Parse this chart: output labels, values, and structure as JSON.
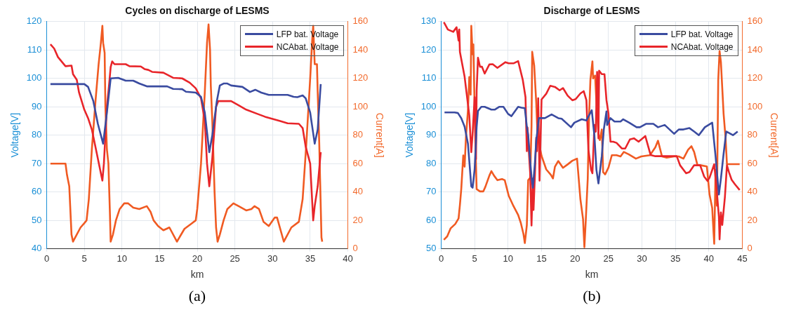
{
  "chart_data": [
    {
      "type": "line",
      "title": "Cycles on discharge of LESMS",
      "xlabel": "km",
      "ylabel": "Voltage[V]",
      "y2label": "Current[A]",
      "annotations": [
        "(a)"
      ],
      "xlim": [
        0,
        40
      ],
      "xticks": [
        0,
        5,
        10,
        15,
        20,
        25,
        30,
        35,
        40
      ],
      "ylim": [
        40,
        120
      ],
      "yticks": [
        40,
        50,
        60,
        70,
        80,
        90,
        100,
        110,
        120
      ],
      "y2lim": [
        0,
        160
      ],
      "y2ticks": [
        0,
        20,
        40,
        60,
        80,
        100,
        120,
        140,
        160
      ],
      "grid": true,
      "legend": "top right",
      "marker": "none",
      "line_style": "solid",
      "series": [
        {
          "name": "LFP bat. Voltage",
          "color": "#3a4ba0",
          "x": [
            0.5,
            5,
            5.5,
            6.2,
            6.8,
            7.5,
            8,
            8.5,
            9.5,
            10.5,
            11.5,
            12.3,
            13.3,
            15,
            16,
            16.8,
            18,
            18.5,
            19.8,
            20.5,
            21,
            21.6,
            22,
            22.6,
            23,
            23.5,
            24,
            24.5,
            26,
            27,
            27.7,
            28.5,
            29.5,
            32,
            32.8,
            33.3,
            34,
            34.4,
            35,
            35.6,
            36,
            36.4
          ],
          "values": [
            98,
            98,
            97,
            92,
            84,
            77,
            88,
            100,
            100.2,
            99.2,
            99.2,
            98.2,
            97.2,
            97.2,
            97.2,
            96.3,
            96.2,
            95.3,
            95,
            93.5,
            88,
            74,
            80,
            92,
            97.5,
            98.2,
            98.2,
            97.5,
            97,
            95.2,
            96,
            95,
            94.2,
            94.2,
            93.5,
            93.4,
            94,
            93,
            88,
            77,
            82,
            98
          ]
        },
        {
          "name": "NCAbat. Voltage",
          "color": "#e8252a",
          "x": [
            0.5,
            1,
            1.5,
            2.5,
            3.3,
            3.5,
            4,
            4.3,
            5,
            5.5,
            6,
            7.4,
            7.6,
            8,
            8.3,
            8.5,
            8.7,
            9,
            10.5,
            11,
            12.5,
            13,
            13.5,
            14,
            15.5,
            16.8,
            18,
            19,
            19.8,
            20.5,
            21,
            21.3,
            21.6,
            22,
            22.5,
            22.8,
            24.5,
            25.5,
            26.5,
            28,
            29,
            31,
            32,
            33.5,
            34,
            34.4,
            35,
            35.4,
            35.6,
            36,
            36.4
          ],
          "values": [
            112,
            110.5,
            107.5,
            104.3,
            104.5,
            101.5,
            99.5,
            95,
            89,
            86,
            82,
            64,
            70,
            90,
            98,
            104,
            106,
            105,
            105,
            104.3,
            104.2,
            103.3,
            103,
            102.3,
            102,
            100.2,
            100,
            98.5,
            96.5,
            93,
            85,
            70,
            62,
            72,
            90,
            92,
            92,
            90.5,
            89,
            87.5,
            86.5,
            85,
            84.2,
            84,
            82.5,
            76,
            70,
            50,
            55,
            62,
            74
          ]
        },
        {
          "axis": "y2",
          "color": "#f05a22",
          "x": [
            0.5,
            2.5,
            2.7,
            3,
            3.3,
            3.5,
            4.5,
            5,
            5.3,
            5.6,
            6,
            6.5,
            6.9,
            7.2,
            7.4,
            7.5,
            7.7,
            7.8,
            8,
            8.2,
            8.4,
            8.5,
            8.8,
            9.2,
            9.7,
            10.3,
            10.8,
            11.5,
            12.3,
            13.3,
            13.8,
            14.2,
            14.8,
            15.5,
            16.3,
            17.3,
            18.3,
            19.3,
            19.8,
            20,
            20.5,
            21,
            21.3,
            21.5,
            21.7,
            21.8,
            22,
            22.3,
            22.5,
            22.7,
            23,
            23.5,
            24,
            24.8,
            25.5,
            26.5,
            27.2,
            27.6,
            28.2,
            28.8,
            29.5,
            30.3,
            30.6,
            31.5,
            32.5,
            33.5,
            34,
            34.5,
            35,
            35.3,
            35.4,
            35.6,
            35.9,
            36,
            36.2,
            36.4,
            36.5,
            36.6
          ],
          "values": [
            60,
            60,
            52,
            44,
            10,
            5,
            15,
            18,
            20,
            35,
            70,
            105,
            130,
            145,
            157,
            145,
            138,
            100,
            70,
            60,
            25,
            5,
            10,
            20,
            28,
            32,
            32,
            29,
            28,
            30,
            26,
            20,
            16,
            13,
            15,
            5,
            14,
            18,
            20,
            28,
            60,
            110,
            145,
            158,
            140,
            115,
            90,
            40,
            15,
            5,
            10,
            20,
            28,
            32,
            30,
            27,
            28,
            30,
            28,
            19,
            16,
            22,
            22,
            5,
            15,
            19,
            35,
            75,
            120,
            150,
            157,
            130,
            130,
            110,
            75,
            30,
            8,
            5
          ]
        }
      ]
    },
    {
      "type": "line",
      "title": "Discharge of LESMS",
      "xlabel": "km",
      "ylabel": "Voltage[V]",
      "y2label": "Current[A]",
      "annotations": [
        "(b)"
      ],
      "xlim": [
        0,
        45
      ],
      "xticks": [
        0,
        5,
        10,
        15,
        20,
        25,
        30,
        35,
        40,
        45
      ],
      "ylim": [
        50,
        130
      ],
      "yticks": [
        50,
        60,
        70,
        80,
        90,
        100,
        110,
        120,
        130
      ],
      "y2lim": [
        0,
        160
      ],
      "y2ticks": [
        0,
        20,
        40,
        60,
        80,
        100,
        120,
        140,
        160
      ],
      "grid": true,
      "legend": "top right",
      "marker": "none",
      "line_style": "solid",
      "series": [
        {
          "name": "LFP bat. Voltage",
          "color": "#3a4ba0",
          "x": [
            0.5,
            2,
            2.5,
            3,
            3.5,
            4,
            4.5,
            4.7,
            5,
            5.3,
            5.5,
            6,
            6.5,
            7.5,
            8,
            8.7,
            9.3,
            10,
            10.5,
            11.5,
            12,
            12.5,
            12.8,
            13,
            13.5,
            13.7,
            14,
            14.2,
            14.6,
            15.5,
            16.5,
            17.5,
            18,
            19.4,
            19.9,
            21,
            21.7,
            22.5,
            22.9,
            23.2,
            23.5,
            24,
            24.3,
            24.7,
            24.8,
            25.3,
            25.9,
            26.8,
            27.2,
            28.1,
            29.2,
            29.7,
            30.6,
            31.7,
            32.4,
            33.4,
            34.8,
            35.5,
            36.2,
            37.1,
            37.8,
            38.5,
            39.4,
            40.5,
            41,
            41.5,
            41.8,
            42.2,
            42.6,
            43.6,
            44.3
          ],
          "values": [
            98,
            98,
            97.8,
            96,
            93,
            87,
            72,
            71.5,
            78,
            93,
            98.5,
            100,
            100,
            99,
            99,
            100,
            100,
            97.5,
            96.7,
            100,
            99.7,
            99.5,
            93,
            90,
            75,
            71.5,
            80,
            88,
            96,
            96,
            97.3,
            96,
            95.8,
            92.8,
            94.4,
            95.6,
            95.2,
            98.8,
            89.7,
            77.8,
            73,
            82.6,
            92,
            98.4,
            93.6,
            96,
            94.8,
            94.8,
            95.6,
            94.4,
            92.8,
            92.8,
            94,
            94,
            92.8,
            93.6,
            90.5,
            92,
            92,
            92.5,
            91.3,
            90,
            92.8,
            94.4,
            82.6,
            69.1,
            74.7,
            83.4,
            91.3,
            90,
            91.3
          ]
        },
        {
          "name": "NCAbat. Voltage",
          "color": "#e8252a",
          "x": [
            0.4,
            1,
            1.8,
            2.3,
            2.6,
            2.7,
            2.8,
            3.5,
            4.2,
            4.5,
            4.7,
            5,
            5.2,
            5.3,
            5.5,
            5.8,
            6.1,
            6.5,
            7.2,
            7.7,
            8.4,
            9.6,
            10.1,
            10.8,
            11.5,
            12.2,
            12.6,
            12.8,
            12.9,
            13.1,
            13.3,
            13.5,
            13.7,
            13.8,
            14,
            14.2,
            14.3,
            14.5,
            14.7,
            15,
            15.7,
            16.3,
            17,
            17.7,
            18.2,
            18.9,
            19.6,
            20.1,
            20.8,
            21.3,
            21.7,
            22,
            22.4,
            22.6,
            22.9,
            23.1,
            23.3,
            23.5,
            23.6,
            24,
            24.4,
            24.7,
            25,
            25.3,
            25.7,
            26.2,
            27,
            27.5,
            28.2,
            28.8,
            29.5,
            30.5,
            31.3,
            32,
            33.8,
            35.2,
            35.7,
            36.6,
            37.1,
            37.8,
            38.7,
            39.3,
            39.8,
            40.1,
            40.8,
            41.2,
            41.5,
            41.6,
            41.8,
            42,
            42.4,
            42.7,
            43,
            43.4,
            43.9,
            44.6
          ],
          "values": [
            129.8,
            127.2,
            126.4,
            128,
            123.3,
            127.2,
            119.3,
            110.6,
            97,
            84,
            90.7,
            103.4,
            81.6,
            105.8,
            117.3,
            114.1,
            114.1,
            111.7,
            114.9,
            115,
            113.7,
            115.7,
            115.3,
            115.3,
            116.1,
            109.4,
            103.4,
            84.4,
            92.7,
            84.4,
            76.5,
            58.2,
            74.8,
            63.7,
            75.6,
            89.1,
            84.4,
            103,
            74,
            102.6,
            104.6,
            107.4,
            107,
            105.8,
            106.6,
            103.9,
            102.3,
            102.7,
            104.7,
            105.5,
            102.3,
            84.9,
            77.8,
            76.6,
            93.6,
            91.2,
            112.3,
            88.9,
            112.7,
            111.5,
            111.5,
            102.3,
            97.6,
            87.7,
            87.7,
            87.3,
            85.3,
            85.3,
            88.5,
            88.9,
            87.7,
            89.7,
            83,
            82.6,
            82.6,
            82.6,
            79.4,
            76.6,
            77,
            79.4,
            79.4,
            75.4,
            73.9,
            75,
            79.8,
            69.9,
            61.2,
            53.3,
            62.8,
            58.4,
            68.3,
            79.4,
            77,
            74.3,
            72.7,
            70.7
          ]
        },
        {
          "axis": "y2",
          "color": "#f05a22",
          "x": [
            0.4,
            0.9,
            1.4,
            2.1,
            2.6,
            2.8,
            3,
            3.3,
            3.5,
            3.7,
            4,
            4.2,
            4.4,
            4.5,
            4.7,
            4.8,
            5.1,
            5.3,
            5.8,
            6.3,
            6.6,
            7.2,
            7.5,
            7.9,
            8.4,
            9.1,
            9.5,
            10.1,
            10.8,
            11.5,
            11.9,
            12.3,
            12.5,
            12.8,
            13,
            13.3,
            13.5,
            13.6,
            13.9,
            14.2,
            14.4,
            15,
            15.7,
            16.4,
            16.7,
            17,
            17.5,
            18.2,
            18.9,
            19.6,
            20.3,
            20.5,
            20.8,
            21.2,
            21.4,
            21.6,
            21.9,
            22.1,
            22.3,
            22.6,
            22.7,
            23,
            23.2,
            23.5,
            23.7,
            24,
            24.2,
            24.5,
            25,
            25.5,
            26.2,
            26.8,
            27.3,
            28,
            29.1,
            29.9,
            31.2,
            32,
            32.4,
            33,
            33.7,
            34.8,
            35.5,
            36.2,
            36.9,
            37.4,
            37.8,
            38.3,
            38.8,
            39.7,
            40.1,
            40.5,
            40.7,
            40.8,
            41,
            41.2,
            41.4,
            41.6,
            41.8,
            42.2,
            42.5,
            42.7,
            43.6,
            44.6
          ],
          "values": [
            6.3,
            8.7,
            14.3,
            17.4,
            21.4,
            30.9,
            42,
            65.7,
            57.8,
            78.4,
            97.4,
            121,
            108.5,
            157,
            137,
            144,
            76.9,
            42,
            40.4,
            40.4,
            43.6,
            51.5,
            54.7,
            51.5,
            48.3,
            49.1,
            48.3,
            37.2,
            30.1,
            23.8,
            18.2,
            10.3,
            4,
            16.6,
            48.3,
            50,
            86.4,
            138.7,
            129,
            103.3,
            79.6,
            65.4,
            55.9,
            52,
            49.5,
            57.8,
            61.8,
            57,
            59.4,
            62,
            63.5,
            52.4,
            35,
            20.9,
            1.1,
            19.3,
            49.3,
            93.5,
            119,
            132,
            120,
            122,
            103,
            81,
            76.5,
            84,
            54,
            52.4,
            57.2,
            65.9,
            65.9,
            65,
            68.2,
            66.6,
            63.5,
            65,
            65.9,
            71.4,
            76.1,
            65,
            64.2,
            65,
            65,
            63.5,
            69.8,
            72.2,
            68.2,
            58.8,
            58.8,
            58,
            38.2,
            28.7,
            11.4,
            3.5,
            55.6,
            30.3,
            118.8,
            139.3,
            131.4,
            95.1,
            77.7,
            59.6,
            59.6,
            59.6
          ]
        }
      ]
    }
  ]
}
